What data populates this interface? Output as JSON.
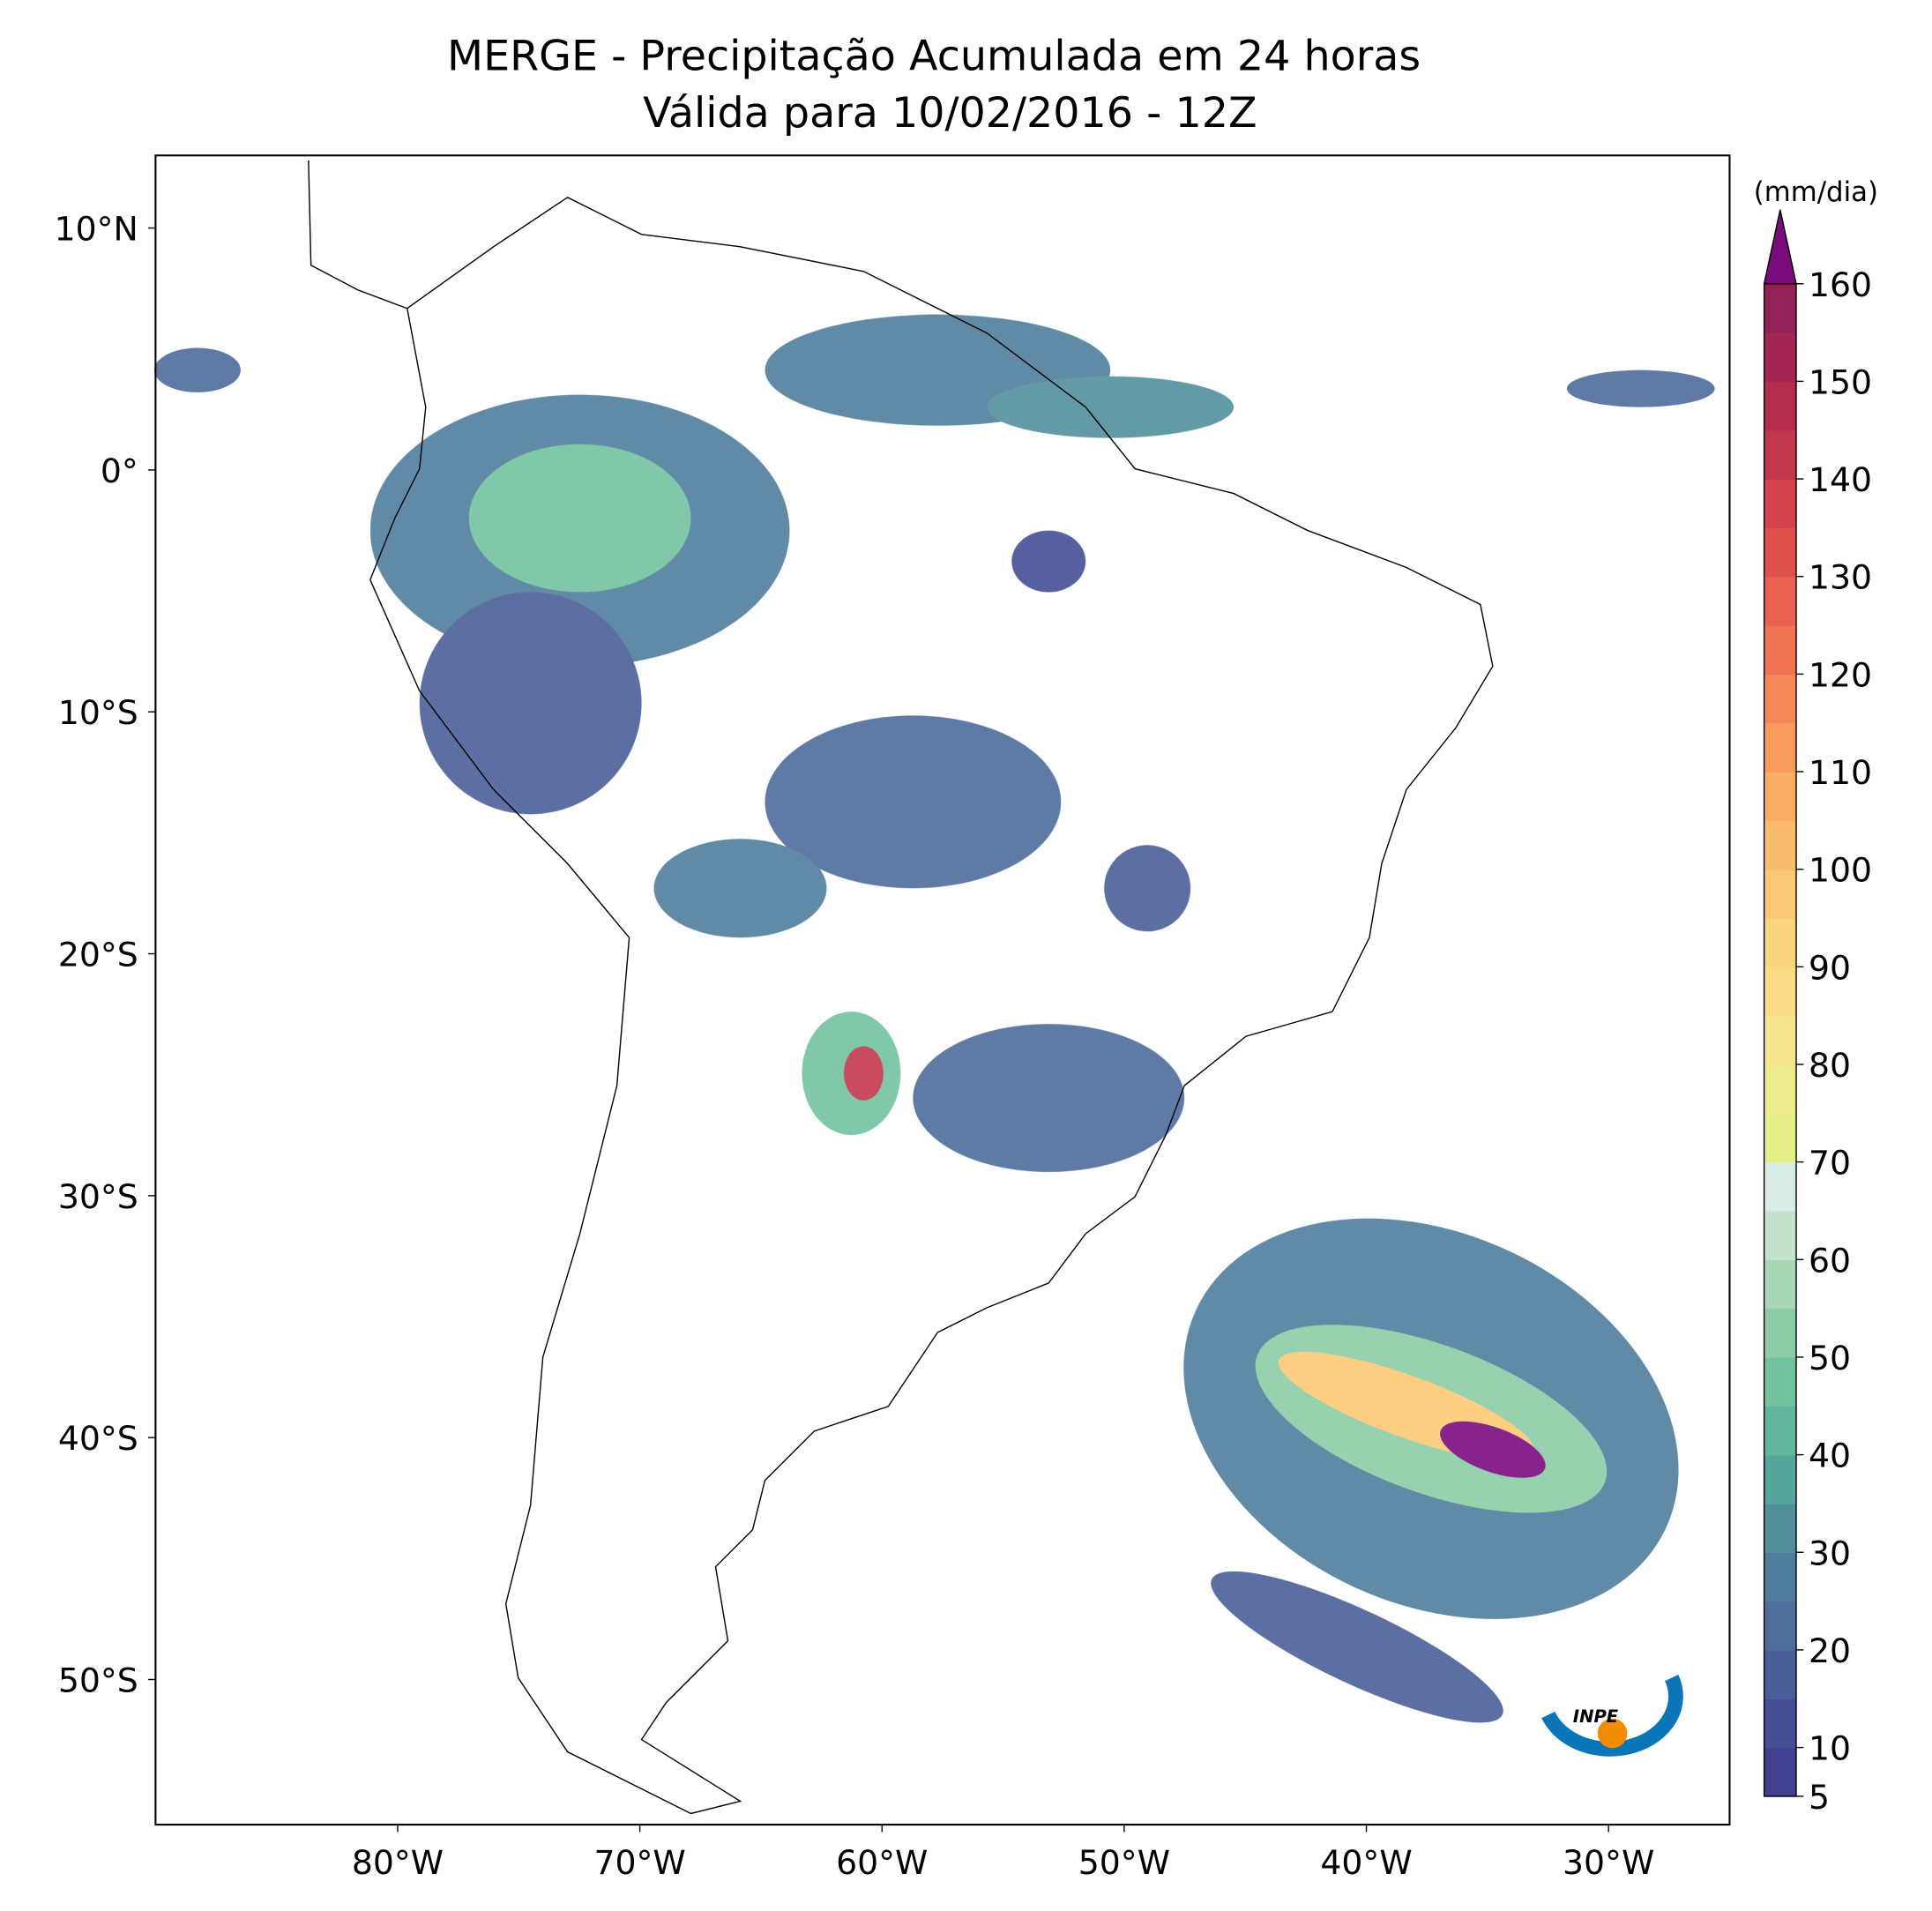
{
  "title": "MERGE - Precipitação Acumulada em 24 horas",
  "subtitle": "Válida para 10/02/2016 - 12Z",
  "map": {
    "lon_range": [
      -90,
      -25
    ],
    "lat_range": [
      -56,
      13
    ],
    "lat_ticks": [
      {
        "value": 10,
        "label": "10°N"
      },
      {
        "value": 0,
        "label": "0°"
      },
      {
        "value": -10,
        "label": "10°S"
      },
      {
        "value": -20,
        "label": "20°S"
      },
      {
        "value": -30,
        "label": "30°S"
      },
      {
        "value": -40,
        "label": "40°S"
      },
      {
        "value": -50,
        "label": "50°S"
      }
    ],
    "lon_ticks": [
      {
        "value": -80,
        "label": "80°W"
      },
      {
        "value": -70,
        "label": "70°W"
      },
      {
        "value": -60,
        "label": "60°W"
      },
      {
        "value": -50,
        "label": "50°W"
      },
      {
        "value": -40,
        "label": "40°W"
      },
      {
        "value": -30,
        "label": "30°W"
      }
    ]
  },
  "colorbar": {
    "unit": "(mm/dia)",
    "ticks": [
      5,
      10,
      20,
      30,
      40,
      50,
      60,
      70,
      80,
      90,
      100,
      110,
      120,
      130,
      140,
      150,
      160
    ],
    "levels": [
      5,
      10,
      15,
      20,
      25,
      30,
      35,
      40,
      45,
      50,
      55,
      60,
      65,
      70,
      75,
      80,
      85,
      90,
      95,
      100,
      105,
      110,
      115,
      120,
      125,
      130,
      135,
      140,
      145,
      150,
      155,
      160
    ],
    "colors": [
      "#413f8e",
      "#454e93",
      "#4a5e98",
      "#4d6d9b",
      "#4f7d9b",
      "#51909b",
      "#56a59a",
      "#62b69b",
      "#72c2a0",
      "#8ccca7",
      "#a7d7b5",
      "#c3e3cd",
      "#d9ede6",
      "#e4ef8a",
      "#ecec8c",
      "#f4e48d",
      "#f8dc86",
      "#fad57f",
      "#fbc975",
      "#fbbd6d",
      "#faad65",
      "#f89b5c",
      "#f5885a",
      "#f07454",
      "#e9624f",
      "#df524c",
      "#d2434b",
      "#c3374c",
      "#b42c4e",
      "#a32552",
      "#922158"
    ],
    "extend_color": "#7a0b7d"
  },
  "logo": "INPE"
}
